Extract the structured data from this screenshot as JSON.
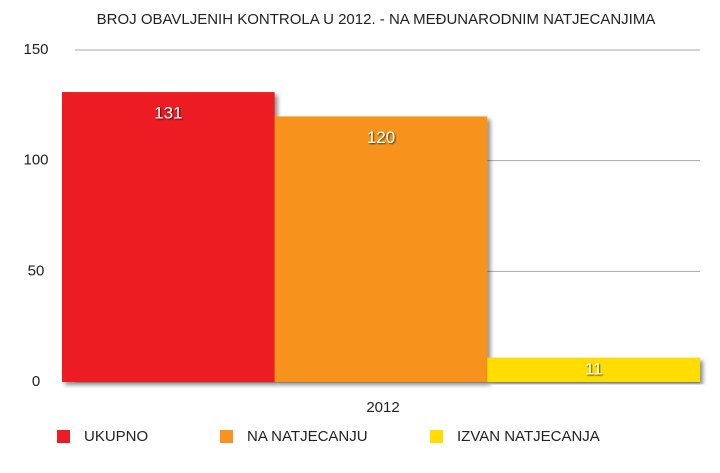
{
  "chart_data": {
    "type": "bar",
    "title": "BROJ OBAVLJENIH KONTROLA U 2012. - NA MEĐUNARODNIM NATJECANJIMA",
    "categories": [
      "2012"
    ],
    "series": [
      {
        "name": "UKUPNO",
        "color": "#ed1c24",
        "values": [
          131
        ]
      },
      {
        "name": "NA NATJECANJU",
        "color": "#f7931e",
        "values": [
          120
        ]
      },
      {
        "name": "IZVAN NATJECANJA",
        "color": "#ffdd00",
        "values": [
          11
        ]
      }
    ],
    "ylim": [
      0,
      150
    ],
    "yticks": [
      0,
      50,
      100,
      150
    ],
    "grid": true
  }
}
